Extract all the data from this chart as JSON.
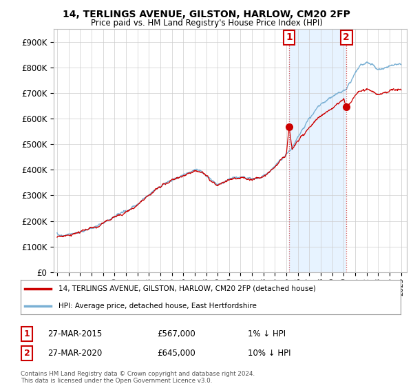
{
  "title": "14, TERLINGS AVENUE, GILSTON, HARLOW, CM20 2FP",
  "subtitle": "Price paid vs. HM Land Registry's House Price Index (HPI)",
  "legend_line1": "14, TERLINGS AVENUE, GILSTON, HARLOW, CM20 2FP (detached house)",
  "legend_line2": "HPI: Average price, detached house, East Hertfordshire",
  "annotation1_date": "27-MAR-2015",
  "annotation1_price": "£567,000",
  "annotation1_hpi": "1% ↓ HPI",
  "annotation2_date": "27-MAR-2020",
  "annotation2_price": "£645,000",
  "annotation2_hpi": "10% ↓ HPI",
  "footer": "Contains HM Land Registry data © Crown copyright and database right 2024.\nThis data is licensed under the Open Government Licence v3.0.",
  "line_color_red": "#cc0000",
  "line_color_blue": "#7ab0d4",
  "shade_color": "#ddeeff",
  "background_color": "#ffffff",
  "grid_color": "#cccccc",
  "sale1_x": 2015.23,
  "sale1_y": 567000,
  "sale2_x": 2020.23,
  "sale2_y": 645000,
  "ylim": [
    0,
    950000
  ],
  "xlim_start": 1994.7,
  "xlim_end": 2025.5
}
